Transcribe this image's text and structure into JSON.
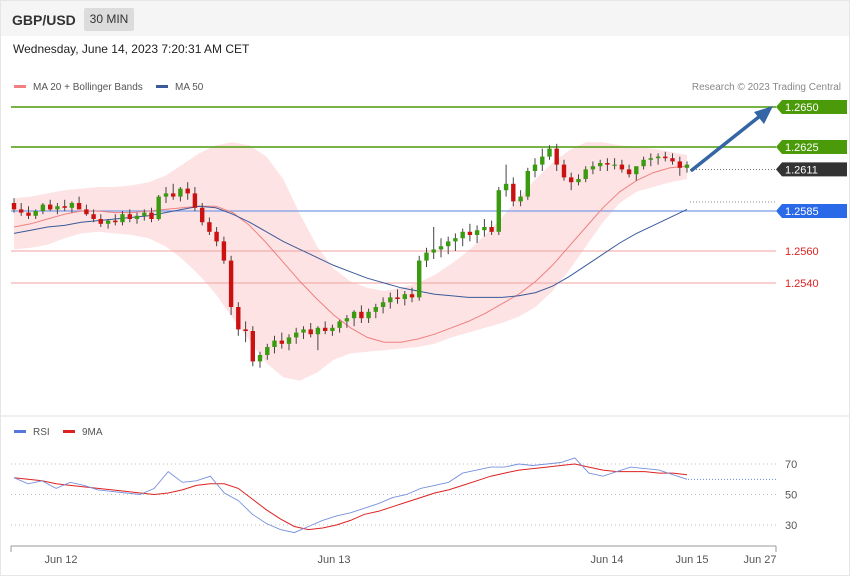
{
  "header": {
    "symbol": "GBP/USD",
    "timeframe": "30 MIN",
    "datetime": "Wednesday, June 14, 2023 7:20:31 AM CET"
  },
  "legend": {
    "ma20_label": "MA 20 + Bollinger Bands",
    "ma50_label": "MA 50",
    "credit": "Research © 2023 Trading Central",
    "ma20_color": "#f08080",
    "ma50_color": "#3a5a9a"
  },
  "rsi_legend": {
    "rsi_label": "RSI",
    "ma_label": "9MA",
    "rsi_color": "#5577dd",
    "ma_color": "#dd2222"
  },
  "levels": [
    {
      "value": 1.265,
      "label": "1.2650",
      "kind": "resistance",
      "color": "#4a9a0a"
    },
    {
      "value": 1.2625,
      "label": "1.2625",
      "kind": "resistance",
      "color": "#4a9a0a"
    },
    {
      "value": 1.2611,
      "label": "1.2611",
      "kind": "current",
      "color": "#333333"
    },
    {
      "value": 1.2585,
      "label": "1.2585",
      "kind": "pivot",
      "color": "#2a6ae8"
    },
    {
      "value": 1.256,
      "label": "1.2560",
      "kind": "support",
      "color": "#dd2222"
    },
    {
      "value": 1.254,
      "label": "1.2540",
      "kind": "support",
      "color": "#dd2222"
    }
  ],
  "x_axis": {
    "labels": [
      "Jun 12",
      "Jun 13",
      "Jun 14",
      "Jun 15",
      "Jun 27"
    ]
  },
  "rsi_axis": {
    "ticks": [
      "70",
      "50",
      "30"
    ]
  },
  "chart_data": {
    "type": "candlestick",
    "title": "GBP/USD",
    "timeframe": "30 MIN",
    "y_range": [
      1.2479,
      1.266
    ],
    "series": [
      {
        "name": "GBP/USD",
        "ohlc": [
          [
            1.259,
            1.2593,
            1.2584,
            1.2586
          ],
          [
            1.2586,
            1.259,
            1.2582,
            1.2584
          ],
          [
            1.2584,
            1.2588,
            1.258,
            1.2582
          ],
          [
            1.2582,
            1.2586,
            1.258,
            1.2585
          ],
          [
            1.2585,
            1.259,
            1.2583,
            1.2589
          ],
          [
            1.2589,
            1.2592,
            1.2585,
            1.2586
          ],
          [
            1.2586,
            1.259,
            1.2583,
            1.2588
          ],
          [
            1.2588,
            1.2592,
            1.2585,
            1.2587
          ],
          [
            1.2587,
            1.2591,
            1.2584,
            1.259
          ],
          [
            1.259,
            1.2594,
            1.2586,
            1.2586
          ],
          [
            1.2586,
            1.2589,
            1.2582,
            1.2583
          ],
          [
            1.2583,
            1.2586,
            1.2578,
            1.258
          ],
          [
            1.258,
            1.2583,
            1.2575,
            1.2577
          ],
          [
            1.2577,
            1.258,
            1.2574,
            1.2579
          ],
          [
            1.2579,
            1.2583,
            1.2576,
            1.2578
          ],
          [
            1.2578,
            1.2585,
            1.2576,
            1.2583
          ],
          [
            1.2583,
            1.2586,
            1.2578,
            1.258
          ],
          [
            1.258,
            1.2584,
            1.2577,
            1.2582
          ],
          [
            1.2582,
            1.2586,
            1.2579,
            1.2584
          ],
          [
            1.2584,
            1.2587,
            1.2578,
            1.258
          ],
          [
            1.258,
            1.2595,
            1.2579,
            1.2594
          ],
          [
            1.2594,
            1.26,
            1.259,
            1.2596
          ],
          [
            1.2596,
            1.2602,
            1.2592,
            1.2594
          ],
          [
            1.2594,
            1.26,
            1.2591,
            1.2599
          ],
          [
            1.2599,
            1.2603,
            1.2592,
            1.2596
          ],
          [
            1.2596,
            1.26,
            1.2585,
            1.2587
          ],
          [
            1.2587,
            1.259,
            1.2576,
            1.2578
          ],
          [
            1.2578,
            1.2581,
            1.257,
            1.2572
          ],
          [
            1.2572,
            1.2575,
            1.2563,
            1.2566
          ],
          [
            1.2566,
            1.2569,
            1.2552,
            1.2554
          ],
          [
            1.2554,
            1.2557,
            1.252,
            1.2525
          ],
          [
            1.2525,
            1.2528,
            1.2507,
            1.2511
          ],
          [
            1.2511,
            1.2516,
            1.2503,
            1.251
          ],
          [
            1.251,
            1.2513,
            1.2488,
            1.2491
          ],
          [
            1.2491,
            1.2497,
            1.2487,
            1.2495
          ],
          [
            1.2495,
            1.2502,
            1.2492,
            1.25
          ],
          [
            1.25,
            1.2507,
            1.2496,
            1.2504
          ],
          [
            1.2504,
            1.2509,
            1.2499,
            1.2502
          ],
          [
            1.2502,
            1.2508,
            1.2498,
            1.2506
          ],
          [
            1.2506,
            1.2512,
            1.2502,
            1.2509
          ],
          [
            1.2509,
            1.2513,
            1.2505,
            1.2511
          ],
          [
            1.2511,
            1.2515,
            1.2506,
            1.2508
          ],
          [
            1.2508,
            1.2513,
            1.2498,
            1.2512
          ],
          [
            1.2512,
            1.2516,
            1.2508,
            1.251
          ],
          [
            1.251,
            1.2514,
            1.2507,
            1.2512
          ],
          [
            1.2512,
            1.2517,
            1.2509,
            1.2516
          ],
          [
            1.2516,
            1.252,
            1.2512,
            1.2518
          ],
          [
            1.2518,
            1.2523,
            1.2513,
            1.2522
          ],
          [
            1.2522,
            1.2526,
            1.2515,
            1.2518
          ],
          [
            1.2518,
            1.2524,
            1.2515,
            1.2522
          ],
          [
            1.2522,
            1.2527,
            1.2518,
            1.2525
          ],
          [
            1.2525,
            1.2531,
            1.2521,
            1.2528
          ],
          [
            1.2528,
            1.2534,
            1.2524,
            1.2531
          ],
          [
            1.2531,
            1.2536,
            1.2527,
            1.253
          ],
          [
            1.253,
            1.2535,
            1.2526,
            1.2533
          ],
          [
            1.2533,
            1.2537,
            1.2528,
            1.2531
          ],
          [
            1.2531,
            1.2557,
            1.2529,
            1.2554
          ],
          [
            1.2554,
            1.2562,
            1.255,
            1.2559
          ],
          [
            1.2559,
            1.2575,
            1.2555,
            1.2561
          ],
          [
            1.2561,
            1.2568,
            1.2556,
            1.2563
          ],
          [
            1.2563,
            1.2569,
            1.2558,
            1.2566
          ],
          [
            1.2566,
            1.2571,
            1.256,
            1.2568
          ],
          [
            1.2568,
            1.2574,
            1.2563,
            1.2572
          ],
          [
            1.2572,
            1.2577,
            1.2566,
            1.257
          ],
          [
            1.257,
            1.2576,
            1.2565,
            1.2573
          ],
          [
            1.2573,
            1.258,
            1.2569,
            1.2575
          ],
          [
            1.2575,
            1.2579,
            1.257,
            1.2572
          ],
          [
            1.2572,
            1.26,
            1.257,
            1.2598
          ],
          [
            1.2598,
            1.2614,
            1.2594,
            1.2602
          ],
          [
            1.2602,
            1.2606,
            1.2588,
            1.2591
          ],
          [
            1.2591,
            1.2598,
            1.2588,
            1.2594
          ],
          [
            1.2594,
            1.2612,
            1.2592,
            1.261
          ],
          [
            1.261,
            1.2618,
            1.2606,
            1.2614
          ],
          [
            1.2614,
            1.2624,
            1.261,
            1.2619
          ],
          [
            1.2619,
            1.2626,
            1.2617,
            1.2624
          ],
          [
            1.2624,
            1.2627,
            1.261,
            1.2614
          ],
          [
            1.2614,
            1.2617,
            1.2604,
            1.2606
          ],
          [
            1.2606,
            1.2609,
            1.2598,
            1.2603
          ],
          [
            1.2603,
            1.2608,
            1.2601,
            1.2605
          ],
          [
            1.2605,
            1.2613,
            1.2603,
            1.2611
          ],
          [
            1.2611,
            1.2616,
            1.2608,
            1.2613
          ],
          [
            1.2613,
            1.2617,
            1.261,
            1.2615
          ],
          [
            1.2615,
            1.2618,
            1.261,
            1.2614
          ],
          [
            1.2614,
            1.2618,
            1.2611,
            1.2614
          ],
          [
            1.2614,
            1.2617,
            1.2609,
            1.2611
          ],
          [
            1.2611,
            1.2614,
            1.2606,
            1.2608
          ],
          [
            1.2608,
            1.2612,
            1.2604,
            1.2613
          ],
          [
            1.2613,
            1.2619,
            1.2611,
            1.2617
          ],
          [
            1.2617,
            1.2621,
            1.2613,
            1.2618
          ],
          [
            1.2618,
            1.2621,
            1.2614,
            1.2619
          ],
          [
            1.2619,
            1.2622,
            1.2616,
            1.2618
          ],
          [
            1.2618,
            1.2621,
            1.2614,
            1.2616
          ],
          [
            1.2616,
            1.2619,
            1.2607,
            1.2612
          ],
          [
            1.2612,
            1.2616,
            1.2609,
            1.2614
          ]
        ]
      }
    ],
    "indicators": {
      "ma20": [
        1.2575,
        1.2577,
        1.258,
        1.2583,
        1.2585,
        1.2585,
        1.2584,
        1.2584,
        1.2585,
        1.2586,
        1.2587,
        1.2588,
        1.2588,
        1.2584,
        1.2576,
        1.2565,
        1.2553,
        1.2541,
        1.253,
        1.252,
        1.2512,
        1.2506,
        1.2503,
        1.2503,
        1.2505,
        1.2508,
        1.2512,
        1.2516,
        1.2521,
        1.2527,
        1.2533,
        1.2541,
        1.2551,
        1.2563,
        1.2575,
        1.2587,
        1.2597,
        1.2604,
        1.2609,
        1.2612,
        1.2613
      ],
      "ma50": [
        1.2571,
        1.2573,
        1.2575,
        1.2576,
        1.2578,
        1.2579,
        1.258,
        1.2581,
        1.2582,
        1.2584,
        1.2586,
        1.2588,
        1.2587,
        1.2583,
        1.2578,
        1.2572,
        1.2566,
        1.2561,
        1.2556,
        1.2551,
        1.2547,
        1.2543,
        1.254,
        1.2537,
        1.2535,
        1.2533,
        1.2532,
        1.2531,
        1.2531,
        1.2531,
        1.2532,
        1.2534,
        1.2538,
        1.2544,
        1.2551,
        1.2558,
        1.2565,
        1.2571,
        1.2576,
        1.2581,
        1.2586
      ],
      "bb_upper": [
        1.2593,
        1.2594,
        1.2596,
        1.2598,
        1.2599,
        1.26,
        1.26,
        1.2601,
        1.2603,
        1.2607,
        1.2614,
        1.2621,
        1.2626,
        1.2628,
        1.2626,
        1.2619,
        1.2605,
        1.2583,
        1.2563,
        1.2549,
        1.2541,
        1.2537,
        1.2535,
        1.2537,
        1.254,
        1.2545,
        1.2552,
        1.256,
        1.257,
        1.2581,
        1.2593,
        1.2605,
        1.2615,
        1.2623,
        1.2628,
        1.2628,
        1.2626,
        1.2625,
        1.2624,
        1.2622,
        1.262
      ],
      "bb_lower": [
        1.2561,
        1.2562,
        1.2564,
        1.2568,
        1.2571,
        1.2572,
        1.2571,
        1.257,
        1.2568,
        1.2563,
        1.2555,
        1.2545,
        1.2533,
        1.2518,
        1.2504,
        1.249,
        1.2481,
        1.2479,
        1.2484,
        1.2492,
        1.2496,
        1.2497,
        1.2498,
        1.2499,
        1.25,
        1.2502,
        1.2506,
        1.2509,
        1.2512,
        1.2515,
        1.2519,
        1.2525,
        1.2535,
        1.2548,
        1.2563,
        1.2578,
        1.259,
        1.2597,
        1.26,
        1.2603,
        1.2605
      ],
      "rsi": [
        61,
        57,
        59,
        54,
        58,
        56,
        53,
        52,
        51,
        50,
        54,
        65,
        58,
        59,
        62,
        51,
        46,
        37,
        31,
        27,
        25,
        29,
        33,
        36,
        38,
        41,
        44,
        48,
        50,
        54,
        56,
        58,
        64,
        66,
        68,
        68,
        70,
        69,
        70,
        71,
        74,
        64,
        62,
        65,
        68,
        67,
        66,
        63,
        60
      ],
      "rsi_ma": [
        61,
        60,
        59,
        57,
        56,
        55,
        54,
        53,
        52,
        51,
        50,
        51,
        53,
        56,
        57,
        57,
        54,
        47,
        40,
        34,
        29,
        27,
        28,
        30,
        33,
        37,
        39,
        42,
        45,
        48,
        51,
        53,
        56,
        59,
        62,
        64,
        66,
        67,
        68,
        69,
        70,
        68,
        66,
        65,
        65,
        65,
        64,
        64,
        63
      ]
    },
    "rsi_range": [
      15,
      85
    ]
  }
}
